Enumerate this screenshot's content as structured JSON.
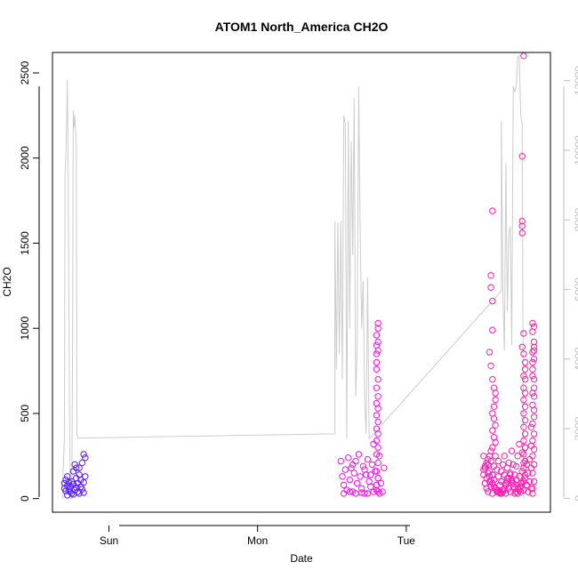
{
  "chart_data": {
    "type": "scatter",
    "title": "ATOM1 North_America CH2O",
    "xlabel": "Date",
    "ylabel": "CH2O",
    "x_ticks": [
      "Sun",
      "Mon",
      "Tue"
    ],
    "x_tick_days": [
      1,
      2,
      3
    ],
    "xlim_days": [
      0.62,
      3.97
    ],
    "ylim": [
      -80,
      2620
    ],
    "y_ticks": [
      0,
      500,
      1000,
      1500,
      2000,
      2500
    ],
    "y2_ticks": [
      0,
      2000,
      4000,
      6000,
      8000,
      10000,
      12000
    ],
    "y2lim": [
      -400,
      12810
    ],
    "grid": false,
    "legend": "none",
    "colors": {
      "line": "#cccccc",
      "axis": "#000000",
      "secondary_axis": "#bdbdbd",
      "point_start": "#4f1bff",
      "point_mid": "#f010ff",
      "point_end": "#ff1ca6"
    },
    "points": [
      [
        0.7,
        90
      ],
      [
        0.7,
        60
      ],
      [
        0.71,
        110
      ],
      [
        0.71,
        45
      ],
      [
        0.72,
        75
      ],
      [
        0.72,
        130
      ],
      [
        0.73,
        55
      ],
      [
        0.73,
        95
      ],
      [
        0.74,
        40
      ],
      [
        0.74,
        70
      ],
      [
        0.75,
        100
      ],
      [
        0.75,
        30
      ],
      [
        0.76,
        160
      ],
      [
        0.76,
        85
      ],
      [
        0.77,
        50
      ],
      [
        0.77,
        200
      ],
      [
        0.78,
        120
      ],
      [
        0.78,
        65
      ],
      [
        0.79,
        90
      ],
      [
        0.79,
        40
      ],
      [
        0.8,
        140
      ],
      [
        0.8,
        180
      ],
      [
        0.81,
        70
      ],
      [
        0.81,
        110
      ],
      [
        0.82,
        210
      ],
      [
        0.82,
        55
      ],
      [
        0.83,
        95
      ],
      [
        0.83,
        260
      ],
      [
        0.84,
        130
      ],
      [
        0.84,
        240
      ],
      [
        0.72,
        20
      ],
      [
        0.76,
        25
      ],
      [
        0.8,
        30
      ],
      [
        0.83,
        35
      ],
      [
        0.78,
        180
      ],
      [
        3.52,
        250
      ],
      [
        3.52,
        140
      ],
      [
        3.53,
        90
      ],
      [
        3.53,
        180
      ],
      [
        3.54,
        60
      ],
      [
        3.54,
        120
      ],
      [
        3.55,
        200
      ],
      [
        3.55,
        40
      ],
      [
        3.56,
        160
      ],
      [
        3.56,
        100
      ],
      [
        3.57,
        220
      ],
      [
        3.57,
        70
      ],
      [
        3.58,
        140
      ],
      [
        3.58,
        30
      ],
      [
        3.59,
        190
      ],
      [
        3.59,
        110
      ],
      [
        3.6,
        250
      ],
      [
        3.6,
        60
      ],
      [
        3.61,
        170
      ],
      [
        3.61,
        40
      ],
      [
        3.62,
        130
      ],
      [
        3.62,
        220
      ],
      [
        3.63,
        80
      ],
      [
        3.63,
        30
      ],
      [
        3.64,
        160
      ],
      [
        3.64,
        100
      ],
      [
        3.65,
        200
      ],
      [
        3.65,
        50
      ],
      [
        3.66,
        140
      ],
      [
        3.66,
        250
      ],
      [
        3.67,
        90
      ],
      [
        3.67,
        30
      ],
      [
        3.68,
        180
      ],
      [
        3.68,
        120
      ],
      [
        3.69,
        60
      ],
      [
        3.69,
        210
      ],
      [
        3.7,
        150
      ],
      [
        3.7,
        40
      ],
      [
        3.71,
        100
      ],
      [
        3.71,
        280
      ],
      [
        3.72,
        70
      ],
      [
        3.72,
        200
      ],
      [
        3.73,
        140
      ],
      [
        3.73,
        30
      ],
      [
        3.74,
        110
      ],
      [
        3.74,
        190
      ],
      [
        3.75,
        60
      ],
      [
        3.75,
        250
      ],
      [
        3.76,
        130
      ],
      [
        3.76,
        320
      ],
      [
        3.77,
        90
      ],
      [
        3.77,
        40
      ],
      [
        3.78,
        270
      ],
      [
        3.78,
        160
      ],
      [
        3.79,
        210
      ],
      [
        3.79,
        50
      ],
      [
        3.8,
        300
      ],
      [
        3.8,
        120
      ],
      [
        3.81,
        80
      ],
      [
        3.81,
        200
      ],
      [
        3.82,
        150
      ],
      [
        3.82,
        40
      ],
      [
        3.83,
        230
      ],
      [
        3.83,
        100
      ],
      [
        3.84,
        60
      ],
      [
        3.84,
        180
      ],
      [
        3.85,
        1030
      ],
      [
        3.85,
        980
      ],
      [
        3.86,
        920
      ],
      [
        3.86,
        870
      ],
      [
        3.86,
        820
      ],
      [
        3.85,
        760
      ],
      [
        3.85,
        720
      ],
      [
        3.86,
        650
      ],
      [
        3.86,
        600
      ],
      [
        3.85,
        550
      ],
      [
        3.86,
        480
      ],
      [
        3.85,
        440
      ],
      [
        3.86,
        380
      ],
      [
        3.85,
        340
      ],
      [
        3.86,
        290
      ],
      [
        3.85,
        250
      ],
      [
        3.86,
        200
      ],
      [
        3.85,
        150
      ],
      [
        3.86,
        100
      ],
      [
        3.85,
        60
      ],
      [
        3.85,
        30
      ],
      [
        3.86,
        890
      ],
      [
        3.85,
        800
      ],
      [
        3.86,
        700
      ],
      [
        3.85,
        620
      ],
      [
        3.84,
        420
      ],
      [
        3.86,
        1010
      ],
      [
        3.84,
        310
      ],
      [
        3.86,
        520
      ],
      [
        3.85,
        860
      ]
    ],
    "points_session2": [
      [
        2.56,
        220
      ],
      [
        2.57,
        130
      ],
      [
        2.58,
        80
      ],
      [
        2.59,
        170
      ],
      [
        2.6,
        50
      ],
      [
        2.61,
        240
      ],
      [
        2.62,
        110
      ],
      [
        2.63,
        180
      ],
      [
        2.64,
        40
      ],
      [
        2.65,
        150
      ],
      [
        2.66,
        220
      ],
      [
        2.67,
        90
      ],
      [
        2.68,
        260
      ],
      [
        2.69,
        130
      ],
      [
        2.7,
        60
      ],
      [
        2.71,
        190
      ],
      [
        2.72,
        30
      ],
      [
        2.73,
        140
      ],
      [
        2.74,
        230
      ],
      [
        2.75,
        100
      ],
      [
        2.76,
        70
      ],
      [
        2.77,
        200
      ],
      [
        2.78,
        320
      ],
      [
        2.79,
        160
      ],
      [
        2.8,
        50
      ],
      [
        2.81,
        120
      ],
      [
        2.82,
        250
      ],
      [
        2.83,
        90
      ],
      [
        2.84,
        40
      ],
      [
        2.85,
        180
      ],
      [
        2.58,
        30
      ],
      [
        2.62,
        40
      ],
      [
        2.66,
        30
      ],
      [
        2.7,
        35
      ],
      [
        2.74,
        30
      ],
      [
        2.78,
        40
      ],
      [
        2.82,
        30
      ],
      [
        2.64,
        200
      ],
      [
        2.72,
        170
      ],
      [
        2.76,
        140
      ],
      [
        2.8,
        850
      ],
      [
        2.8,
        800
      ],
      [
        2.81,
        1030
      ],
      [
        2.81,
        1000
      ],
      [
        2.8,
        960
      ],
      [
        2.81,
        920
      ],
      [
        2.8,
        900
      ],
      [
        2.81,
        870
      ],
      [
        2.8,
        760
      ],
      [
        2.81,
        700
      ],
      [
        2.8,
        650
      ],
      [
        2.81,
        600
      ],
      [
        2.8,
        560
      ],
      [
        2.81,
        530
      ],
      [
        2.8,
        490
      ],
      [
        2.81,
        450
      ],
      [
        2.8,
        410
      ],
      [
        2.81,
        380
      ],
      [
        2.8,
        340
      ],
      [
        2.81,
        300
      ],
      [
        2.8,
        260
      ],
      [
        2.81,
        210
      ],
      [
        2.8,
        160
      ],
      [
        2.81,
        120
      ],
      [
        2.8,
        80
      ],
      [
        2.81,
        40
      ]
    ],
    "points_session3": [
      [
        3.58,
        1690
      ],
      [
        3.57,
        1310
      ],
      [
        3.57,
        1240
      ],
      [
        3.58,
        1160
      ],
      [
        3.58,
        990
      ],
      [
        3.56,
        860
      ],
      [
        3.57,
        780
      ],
      [
        3.58,
        700
      ],
      [
        3.59,
        650
      ],
      [
        3.6,
        620
      ],
      [
        3.6,
        580
      ],
      [
        3.59,
        540
      ],
      [
        3.58,
        500
      ],
      [
        3.59,
        470
      ],
      [
        3.6,
        430
      ],
      [
        3.58,
        400
      ],
      [
        3.59,
        360
      ],
      [
        3.6,
        330
      ],
      [
        3.58,
        300
      ],
      [
        3.57,
        280
      ],
      [
        3.56,
        250
      ],
      [
        3.55,
        230
      ],
      [
        3.54,
        210
      ],
      [
        3.53,
        190
      ],
      [
        3.52,
        170
      ],
      [
        3.55,
        150
      ],
      [
        3.56,
        130
      ],
      [
        3.57,
        110
      ],
      [
        3.58,
        90
      ],
      [
        3.59,
        70
      ],
      [
        3.6,
        60
      ],
      [
        3.61,
        50
      ],
      [
        3.62,
        40
      ],
      [
        3.63,
        35
      ],
      [
        3.64,
        30
      ],
      [
        3.65,
        40
      ],
      [
        3.66,
        60
      ],
      [
        3.67,
        80
      ],
      [
        3.68,
        100
      ],
      [
        3.69,
        120
      ],
      [
        3.7,
        140
      ],
      [
        3.71,
        110
      ],
      [
        3.72,
        90
      ],
      [
        3.73,
        60
      ],
      [
        3.74,
        40
      ],
      [
        3.75,
        30
      ],
      [
        3.76,
        50
      ],
      [
        3.77,
        70
      ],
      [
        3.78,
        90
      ],
      [
        3.79,
        2600
      ],
      [
        3.78,
        2010
      ],
      [
        3.78,
        1630
      ],
      [
        3.78,
        1600
      ],
      [
        3.78,
        1560
      ],
      [
        3.79,
        970
      ],
      [
        3.78,
        890
      ],
      [
        3.79,
        850
      ],
      [
        3.8,
        800
      ],
      [
        3.8,
        760
      ],
      [
        3.79,
        720
      ],
      [
        3.8,
        700
      ],
      [
        3.79,
        650
      ],
      [
        3.8,
        620
      ],
      [
        3.79,
        580
      ],
      [
        3.8,
        540
      ],
      [
        3.79,
        500
      ],
      [
        3.8,
        460
      ],
      [
        3.79,
        420
      ],
      [
        3.8,
        380
      ],
      [
        3.79,
        340
      ],
      [
        3.8,
        300
      ],
      [
        3.79,
        260
      ],
      [
        3.8,
        220
      ],
      [
        3.79,
        180
      ],
      [
        3.8,
        140
      ],
      [
        3.79,
        100
      ]
    ],
    "line": [
      [
        0.69,
        0
      ],
      [
        0.69,
        120
      ],
      [
        0.7,
        350
      ],
      [
        0.705,
        1900
      ],
      [
        0.71,
        2000
      ],
      [
        0.715,
        2200
      ],
      [
        0.72,
        2460
      ],
      [
        0.725,
        2000
      ],
      [
        0.73,
        1200
      ],
      [
        0.735,
        480
      ],
      [
        0.74,
        0
      ],
      [
        0.75,
        0
      ],
      [
        0.755,
        900
      ],
      [
        0.76,
        2280
      ],
      [
        0.765,
        2180
      ],
      [
        0.77,
        2250
      ],
      [
        0.775,
        2160
      ],
      [
        0.78,
        2100
      ],
      [
        0.785,
        380
      ],
      [
        0.79,
        355
      ],
      [
        2.52,
        380
      ],
      [
        2.52,
        1630
      ],
      [
        2.53,
        760
      ],
      [
        2.54,
        1620
      ],
      [
        2.55,
        850
      ],
      [
        2.56,
        1630
      ],
      [
        2.57,
        700
      ],
      [
        2.58,
        2250
      ],
      [
        2.59,
        2200
      ],
      [
        2.6,
        350
      ],
      [
        2.61,
        2220
      ],
      [
        2.62,
        1000
      ],
      [
        2.63,
        2100
      ],
      [
        2.64,
        1430
      ],
      [
        2.65,
        2350
      ],
      [
        2.66,
        600
      ],
      [
        2.67,
        900
      ],
      [
        2.68,
        2420
      ],
      [
        2.69,
        1600
      ],
      [
        2.7,
        1000
      ],
      [
        2.71,
        1280
      ],
      [
        2.72,
        600
      ],
      [
        2.73,
        380
      ],
      [
        2.74,
        1300
      ],
      [
        2.75,
        350
      ],
      [
        3.64,
        1220
      ],
      [
        3.64,
        2220
      ],
      [
        3.65,
        1200
      ],
      [
        3.66,
        870
      ],
      [
        3.67,
        1970
      ],
      [
        3.68,
        1100
      ],
      [
        3.69,
        1550
      ],
      [
        3.7,
        1600
      ],
      [
        3.71,
        900
      ],
      [
        3.72,
        2420
      ],
      [
        3.73,
        2390
      ],
      [
        3.74,
        2420
      ],
      [
        3.75,
        2590
      ],
      [
        3.76,
        2600
      ],
      [
        3.77,
        2250
      ],
      [
        3.78,
        2200
      ],
      [
        3.79,
        0
      ]
    ]
  }
}
